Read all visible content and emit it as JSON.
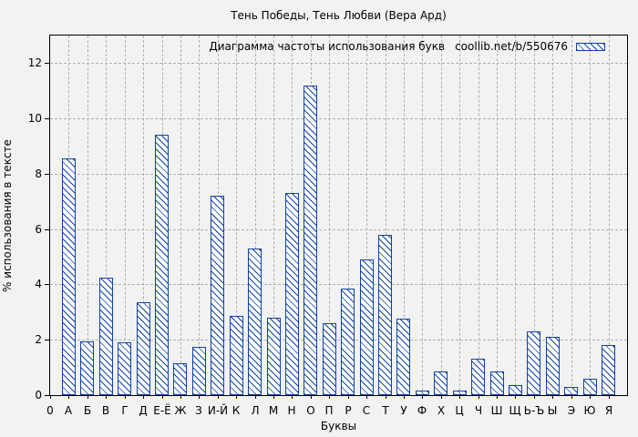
{
  "title": "Тень Победы, Тень Любви (Вера Ард)",
  "legend": {
    "label": "Диаграмма частоты использования букв",
    "source": "coollib.net/b/550676"
  },
  "axes": {
    "x_label": "Буквы",
    "y_label": "% использования в тексте",
    "x_origin_tick": "0",
    "y_ticks": [
      0,
      2,
      4,
      6,
      8,
      10,
      12
    ]
  },
  "colors": {
    "background": "#f2f2f2",
    "bar_fill": "#ffffff",
    "bar_hatch": "#0f42a3",
    "grid": "#b0b0b0",
    "axis": "#000000",
    "text": "#000000"
  },
  "chart_data": {
    "type": "bar",
    "title": "Тень Победы, Тень Любви (Вера Ард)",
    "legend_label": "Диаграмма частоты использования букв coollib.net/b/550676",
    "legend_position": "top-right",
    "xlabel": "Буквы",
    "ylabel": "% использования в тексте",
    "x_origin_tick": "0",
    "ylim": [
      0,
      13
    ],
    "yticks": [
      0,
      2,
      4,
      6,
      8,
      10,
      12
    ],
    "grid": true,
    "bar_style": "white fill with blue diagonal hatch, blue outline",
    "categories": [
      "А",
      "Б",
      "В",
      "Г",
      "Д",
      "Е-Ё",
      "Ж",
      "З",
      "И-Й",
      "К",
      "Л",
      "М",
      "Н",
      "О",
      "П",
      "Р",
      "С",
      "Т",
      "У",
      "Ф",
      "Х",
      "Ц",
      "Ч",
      "Ш",
      "Щ",
      "Ь-Ъ",
      "Ы",
      "Э",
      "Ю",
      "Я"
    ],
    "values": [
      8.55,
      1.95,
      4.25,
      1.9,
      3.35,
      9.4,
      1.15,
      1.75,
      7.2,
      2.85,
      5.3,
      2.8,
      7.3,
      11.2,
      2.6,
      3.85,
      4.9,
      5.8,
      2.75,
      0.15,
      0.85,
      0.15,
      1.3,
      0.85,
      0.35,
      2.3,
      2.1,
      0.3,
      0.6,
      1.8
    ]
  }
}
